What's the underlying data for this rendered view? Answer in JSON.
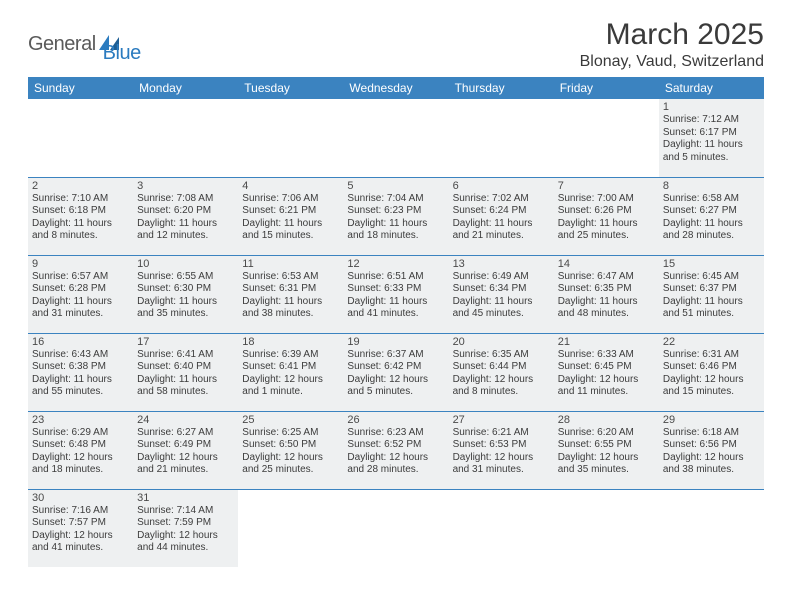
{
  "logo": {
    "general": "General",
    "blue": "Blue"
  },
  "title": "March 2025",
  "location": "Blonay, Vaud, Switzerland",
  "colors": {
    "header_bg": "#3b83c0",
    "header_fg": "#ffffff",
    "cell_bg": "#eef0f1",
    "border": "#3b83c0",
    "text": "#3c3c3c",
    "title_color": "#3a3a3a",
    "logo_gray": "#5a5a5a",
    "logo_blue": "#2b7bbf"
  },
  "weekdays": [
    "Sunday",
    "Monday",
    "Tuesday",
    "Wednesday",
    "Thursday",
    "Friday",
    "Saturday"
  ],
  "weeks": [
    [
      null,
      null,
      null,
      null,
      null,
      null,
      {
        "n": "1",
        "sr": "Sunrise: 7:12 AM",
        "ss": "Sunset: 6:17 PM",
        "d1": "Daylight: 11 hours",
        "d2": "and 5 minutes."
      }
    ],
    [
      {
        "n": "2",
        "sr": "Sunrise: 7:10 AM",
        "ss": "Sunset: 6:18 PM",
        "d1": "Daylight: 11 hours",
        "d2": "and 8 minutes."
      },
      {
        "n": "3",
        "sr": "Sunrise: 7:08 AM",
        "ss": "Sunset: 6:20 PM",
        "d1": "Daylight: 11 hours",
        "d2": "and 12 minutes."
      },
      {
        "n": "4",
        "sr": "Sunrise: 7:06 AM",
        "ss": "Sunset: 6:21 PM",
        "d1": "Daylight: 11 hours",
        "d2": "and 15 minutes."
      },
      {
        "n": "5",
        "sr": "Sunrise: 7:04 AM",
        "ss": "Sunset: 6:23 PM",
        "d1": "Daylight: 11 hours",
        "d2": "and 18 minutes."
      },
      {
        "n": "6",
        "sr": "Sunrise: 7:02 AM",
        "ss": "Sunset: 6:24 PM",
        "d1": "Daylight: 11 hours",
        "d2": "and 21 minutes."
      },
      {
        "n": "7",
        "sr": "Sunrise: 7:00 AM",
        "ss": "Sunset: 6:26 PM",
        "d1": "Daylight: 11 hours",
        "d2": "and 25 minutes."
      },
      {
        "n": "8",
        "sr": "Sunrise: 6:58 AM",
        "ss": "Sunset: 6:27 PM",
        "d1": "Daylight: 11 hours",
        "d2": "and 28 minutes."
      }
    ],
    [
      {
        "n": "9",
        "sr": "Sunrise: 6:57 AM",
        "ss": "Sunset: 6:28 PM",
        "d1": "Daylight: 11 hours",
        "d2": "and 31 minutes."
      },
      {
        "n": "10",
        "sr": "Sunrise: 6:55 AM",
        "ss": "Sunset: 6:30 PM",
        "d1": "Daylight: 11 hours",
        "d2": "and 35 minutes."
      },
      {
        "n": "11",
        "sr": "Sunrise: 6:53 AM",
        "ss": "Sunset: 6:31 PM",
        "d1": "Daylight: 11 hours",
        "d2": "and 38 minutes."
      },
      {
        "n": "12",
        "sr": "Sunrise: 6:51 AM",
        "ss": "Sunset: 6:33 PM",
        "d1": "Daylight: 11 hours",
        "d2": "and 41 minutes."
      },
      {
        "n": "13",
        "sr": "Sunrise: 6:49 AM",
        "ss": "Sunset: 6:34 PM",
        "d1": "Daylight: 11 hours",
        "d2": "and 45 minutes."
      },
      {
        "n": "14",
        "sr": "Sunrise: 6:47 AM",
        "ss": "Sunset: 6:35 PM",
        "d1": "Daylight: 11 hours",
        "d2": "and 48 minutes."
      },
      {
        "n": "15",
        "sr": "Sunrise: 6:45 AM",
        "ss": "Sunset: 6:37 PM",
        "d1": "Daylight: 11 hours",
        "d2": "and 51 minutes."
      }
    ],
    [
      {
        "n": "16",
        "sr": "Sunrise: 6:43 AM",
        "ss": "Sunset: 6:38 PM",
        "d1": "Daylight: 11 hours",
        "d2": "and 55 minutes."
      },
      {
        "n": "17",
        "sr": "Sunrise: 6:41 AM",
        "ss": "Sunset: 6:40 PM",
        "d1": "Daylight: 11 hours",
        "d2": "and 58 minutes."
      },
      {
        "n": "18",
        "sr": "Sunrise: 6:39 AM",
        "ss": "Sunset: 6:41 PM",
        "d1": "Daylight: 12 hours",
        "d2": "and 1 minute."
      },
      {
        "n": "19",
        "sr": "Sunrise: 6:37 AM",
        "ss": "Sunset: 6:42 PM",
        "d1": "Daylight: 12 hours",
        "d2": "and 5 minutes."
      },
      {
        "n": "20",
        "sr": "Sunrise: 6:35 AM",
        "ss": "Sunset: 6:44 PM",
        "d1": "Daylight: 12 hours",
        "d2": "and 8 minutes."
      },
      {
        "n": "21",
        "sr": "Sunrise: 6:33 AM",
        "ss": "Sunset: 6:45 PM",
        "d1": "Daylight: 12 hours",
        "d2": "and 11 minutes."
      },
      {
        "n": "22",
        "sr": "Sunrise: 6:31 AM",
        "ss": "Sunset: 6:46 PM",
        "d1": "Daylight: 12 hours",
        "d2": "and 15 minutes."
      }
    ],
    [
      {
        "n": "23",
        "sr": "Sunrise: 6:29 AM",
        "ss": "Sunset: 6:48 PM",
        "d1": "Daylight: 12 hours",
        "d2": "and 18 minutes."
      },
      {
        "n": "24",
        "sr": "Sunrise: 6:27 AM",
        "ss": "Sunset: 6:49 PM",
        "d1": "Daylight: 12 hours",
        "d2": "and 21 minutes."
      },
      {
        "n": "25",
        "sr": "Sunrise: 6:25 AM",
        "ss": "Sunset: 6:50 PM",
        "d1": "Daylight: 12 hours",
        "d2": "and 25 minutes."
      },
      {
        "n": "26",
        "sr": "Sunrise: 6:23 AM",
        "ss": "Sunset: 6:52 PM",
        "d1": "Daylight: 12 hours",
        "d2": "and 28 minutes."
      },
      {
        "n": "27",
        "sr": "Sunrise: 6:21 AM",
        "ss": "Sunset: 6:53 PM",
        "d1": "Daylight: 12 hours",
        "d2": "and 31 minutes."
      },
      {
        "n": "28",
        "sr": "Sunrise: 6:20 AM",
        "ss": "Sunset: 6:55 PM",
        "d1": "Daylight: 12 hours",
        "d2": "and 35 minutes."
      },
      {
        "n": "29",
        "sr": "Sunrise: 6:18 AM",
        "ss": "Sunset: 6:56 PM",
        "d1": "Daylight: 12 hours",
        "d2": "and 38 minutes."
      }
    ],
    [
      {
        "n": "30",
        "sr": "Sunrise: 7:16 AM",
        "ss": "Sunset: 7:57 PM",
        "d1": "Daylight: 12 hours",
        "d2": "and 41 minutes."
      },
      {
        "n": "31",
        "sr": "Sunrise: 7:14 AM",
        "ss": "Sunset: 7:59 PM",
        "d1": "Daylight: 12 hours",
        "d2": "and 44 minutes."
      },
      null,
      null,
      null,
      null,
      null
    ]
  ]
}
